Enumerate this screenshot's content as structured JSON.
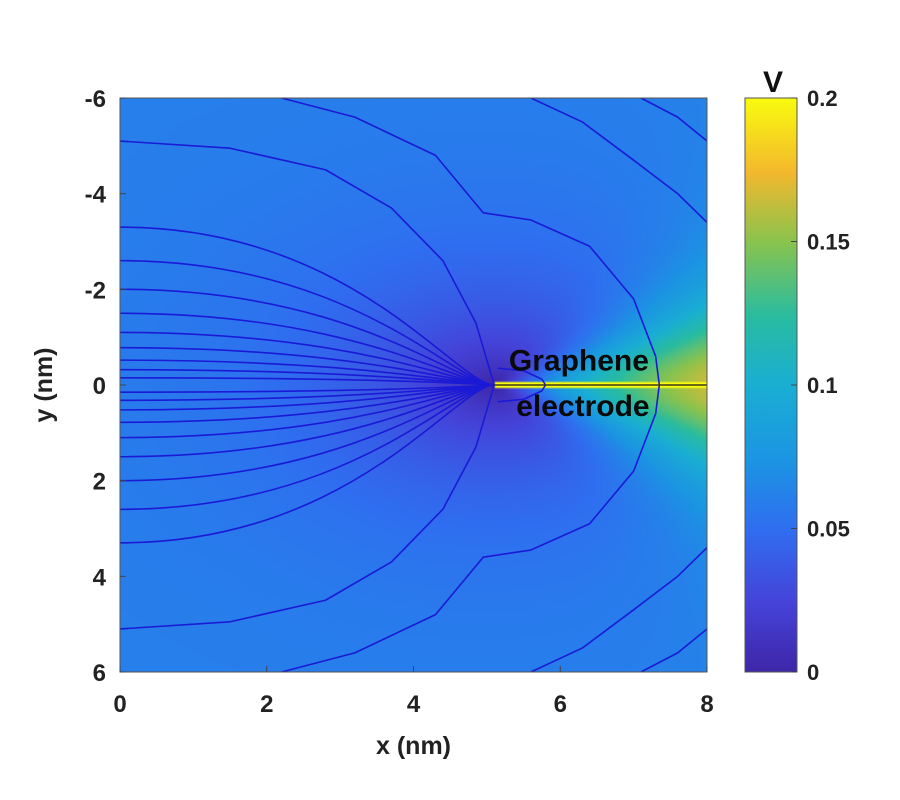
{
  "chart_data": {
    "type": "heatmap",
    "title": "",
    "xlabel": "x (nm)",
    "ylabel": "y (nm)",
    "xlim": [
      0,
      8
    ],
    "ylim": [
      -6,
      6
    ],
    "y_axis_reversed": true,
    "x_ticks": [
      "0",
      "2",
      "4",
      "6",
      "8"
    ],
    "y_ticks": [
      "-6",
      "-4",
      "-2",
      "0",
      "2",
      "4",
      "6"
    ],
    "colorbar": {
      "label": "V",
      "range": [
        0,
        0.2
      ],
      "ticks": [
        "0",
        "0.05",
        "0.1",
        "0.15",
        "0.2"
      ],
      "colormap": "parula"
    },
    "annotation": {
      "line1": "Graphene",
      "line2": "electrode"
    },
    "electrode": {
      "x_start": 5.1,
      "x_end": 8,
      "y": 0
    },
    "contour_color": "#1a1ad6",
    "grid": false
  }
}
